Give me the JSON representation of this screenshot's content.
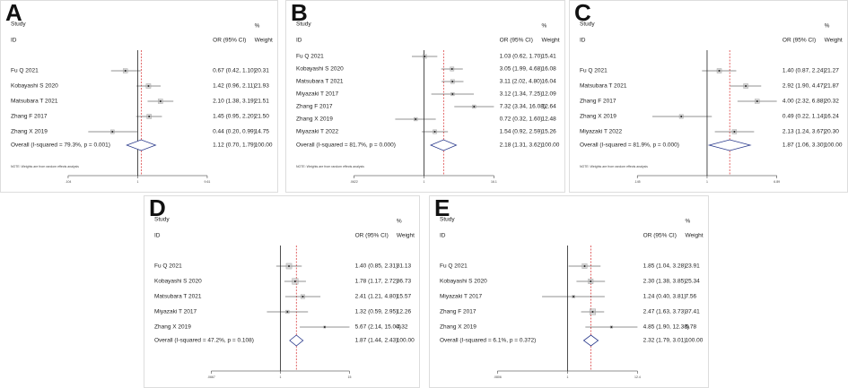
{
  "chart_data": [
    {
      "type": "forest",
      "panel": "A",
      "study_header": "Study",
      "percent_header": "%",
      "id_header": "ID",
      "estimate_header": "OR (95% CI)",
      "weight_header": "Weight",
      "categories": [
        "Fu Q 2021",
        "Kobayashi S 2020",
        "Matsubara T 2021",
        "Zhang F 2017",
        "Zhang X 2019"
      ],
      "values": [
        0.67,
        1.42,
        2.1,
        1.45,
        0.44
      ],
      "lower": [
        0.42,
        0.96,
        1.38,
        0.95,
        0.2
      ],
      "upper": [
        1.1,
        2.11,
        3.19,
        2.2,
        0.99
      ],
      "value_labels": [
        "0.67 (0.42, 1.10)",
        "1.42 (0.96, 2.11)",
        "2.10 (1.38, 3.19)",
        "1.45 (0.95, 2.20)",
        "0.44 (0.20, 0.99)"
      ],
      "weights": [
        20.31,
        21.93,
        21.51,
        21.5,
        14.75
      ],
      "weight_labels": [
        "20.31",
        "21.93",
        "21.51",
        "21.50",
        "14.75"
      ],
      "overall": {
        "label": "Overall  (I-squared = 79.3%, p = 0.001)",
        "value": 1.12,
        "lower": 0.7,
        "upper": 1.79,
        "value_label": "1.12 (0.70, 1.79)",
        "weight": 100,
        "weight_label": "100.00"
      },
      "note": "NOTE: Weights are from random effects analysis",
      "log_x": true,
      "xlim": [
        0.104,
        9.61
      ],
      "xticks": [
        {
          "value": 0.104,
          "label": ".104"
        },
        1,
        9.61
      ],
      "color": "#222222",
      "overall_line_color": "#d62728"
    },
    {
      "type": "forest",
      "panel": "B",
      "study_header": "Study",
      "percent_header": "%",
      "id_header": "ID",
      "estimate_header": "OR (95% CI)",
      "weight_header": "Weight",
      "categories": [
        "Fu Q 2021",
        "Kobayashi S 2020",
        "Matsubara T 2021",
        "Miyazaki T 2017",
        "Zhang F 2017",
        "Zhang X 2019",
        "Miyazaki T 2022"
      ],
      "values": [
        1.03,
        3.05,
        3.11,
        3.12,
        7.32,
        0.72,
        1.54
      ],
      "lower": [
        0.62,
        1.99,
        2.02,
        1.34,
        3.34,
        0.32,
        0.92
      ],
      "upper": [
        1.7,
        4.68,
        4.8,
        7.25,
        16.08,
        1.6,
        2.59
      ],
      "value_labels": [
        "1.03 (0.62, 1.70)",
        "3.05 (1.99, 4.68)",
        "3.11 (2.02, 4.80)",
        "3.12 (1.34, 7.25)",
        "7.32 (3.34, 16.08)",
        "0.72 (0.32, 1.60)",
        "1.54 (0.92, 2.59)"
      ],
      "weights": [
        15.41,
        16.08,
        16.04,
        12.09,
        12.64,
        12.48,
        15.26
      ],
      "weight_labels": [
        "15.41",
        "16.08",
        "16.04",
        "12.09",
        "12.64",
        "12.48",
        "15.26"
      ],
      "overall": {
        "label": "Overall  (I-squared = 81.7%, p = 0.000)",
        "value": 2.18,
        "lower": 1.31,
        "upper": 3.62,
        "value_label": "2.18 (1.31, 3.62)",
        "weight": 100,
        "weight_label": "100.00"
      },
      "note": "NOTE: Weights are from random effects analysis",
      "log_x": true,
      "xlim": [
        0.0622,
        16.1
      ],
      "xticks": [
        {
          "value": 0.0622,
          "label": ".0622"
        },
        1,
        16.1
      ],
      "color": "#222222",
      "overall_line_color": "#d62728"
    },
    {
      "type": "forest",
      "panel": "C",
      "study_header": "Study",
      "percent_header": "%",
      "id_header": "ID",
      "estimate_header": "OR (95% CI)",
      "weight_header": "Weight",
      "categories": [
        "Fu Q 2021",
        "Matsubara T 2021",
        "Zhang F 2017",
        "Zhang X 2019",
        "Miyazaki T 2022"
      ],
      "values": [
        1.4,
        2.92,
        4.0,
        0.49,
        2.13
      ],
      "lower": [
        0.87,
        1.9,
        2.32,
        0.22,
        1.24
      ],
      "upper": [
        2.24,
        4.47,
        6.88,
        1.14,
        3.67
      ],
      "value_labels": [
        "1.40 (0.87, 2.24)",
        "2.92 (1.90, 4.47)",
        "4.00 (2.32, 6.88)",
        "0.49 (0.22, 1.14)",
        "2.13 (1.24, 3.67)"
      ],
      "weights": [
        21.27,
        21.87,
        20.32,
        16.24,
        20.3
      ],
      "weight_labels": [
        "21.27",
        "21.87",
        "20.32",
        "16.24",
        "20.30"
      ],
      "overall": {
        "label": "Overall  (I-squared = 81.9%, p = 0.000)",
        "value": 1.87,
        "lower": 1.06,
        "upper": 3.3,
        "value_label": "1.87 (1.06, 3.30)",
        "weight": 100,
        "weight_label": "100.00"
      },
      "note": "NOTE: Weights are from random effects analysis",
      "log_x": true,
      "xlim": [
        0.145,
        6.89
      ],
      "xticks": [
        {
          "value": 0.145,
          "label": ".145"
        },
        1,
        6.89
      ],
      "color": "#222222",
      "overall_line_color": "#d62728"
    },
    {
      "type": "forest",
      "panel": "D",
      "study_header": "Study",
      "percent_header": "%",
      "id_header": "ID",
      "estimate_header": "OR (95% CI)",
      "weight_header": "Weight",
      "categories": [
        "Fu Q 2021",
        "Kobayashi S 2020",
        "Matsubara T 2021",
        "Miyazaki T 2017",
        "Zhang X 2019"
      ],
      "values": [
        1.4,
        1.78,
        2.41,
        1.32,
        5.67
      ],
      "lower": [
        0.85,
        1.17,
        1.21,
        0.59,
        2.14
      ],
      "upper": [
        2.31,
        2.72,
        4.8,
        2.95,
        15.0
      ],
      "value_labels": [
        "1.40 (0.85, 2.31)",
        "1.78 (1.17, 2.72)",
        "2.41 (1.21, 4.80)",
        "1.32 (0.59, 2.95)",
        "5.67 (2.14, 15.00)"
      ],
      "weights": [
        31.13,
        36.73,
        15.57,
        12.26,
        4.32
      ],
      "weight_labels": [
        "31.13",
        "36.73",
        "15.57",
        "12.26",
        "4.32"
      ],
      "overall": {
        "label": "Overall  (I-squared = 47.2%, p = 0.108)",
        "value": 1.87,
        "lower": 1.44,
        "upper": 2.43,
        "value_label": "1.87 (1.44, 2.43)",
        "weight": 100,
        "weight_label": "100.00"
      },
      "log_x": true,
      "xlim": [
        0.0667,
        15
      ],
      "xticks": [
        {
          "value": 0.0667,
          "label": ".0667"
        },
        1,
        15
      ],
      "color": "#222222",
      "overall_line_color": "#d62728"
    },
    {
      "type": "forest",
      "panel": "E",
      "study_header": "Study",
      "percent_header": "%",
      "id_header": "ID",
      "estimate_header": "OR (95% CI)",
      "weight_header": "Weight",
      "categories": [
        "Fu Q 2021",
        "Kobayashi S 2020",
        "Miyazaki T 2017",
        "Zhang F 2017",
        "Zhang X 2019"
      ],
      "values": [
        1.85,
        2.3,
        1.24,
        2.47,
        4.85
      ],
      "lower": [
        1.04,
        1.38,
        0.4,
        1.63,
        1.9
      ],
      "upper": [
        3.28,
        3.85,
        3.81,
        3.73,
        12.38
      ],
      "value_labels": [
        "1.85 (1.04, 3.28)",
        "2.30 (1.38, 3.85)",
        "1.24 (0.40, 3.81)",
        "2.47 (1.63, 3.73)",
        "4.85 (1.90, 12.38)"
      ],
      "weights": [
        23.91,
        25.34,
        7.56,
        37.41,
        5.78
      ],
      "weight_labels": [
        "23.91",
        "25.34",
        "7.56",
        "37.41",
        "5.78"
      ],
      "overall": {
        "label": "Overall  (I-squared = 6.1%, p = 0.372)",
        "value": 2.32,
        "lower": 1.79,
        "upper": 3.01,
        "value_label": "2.32 (1.79, 3.01)",
        "weight": 100,
        "weight_label": "100.00"
      },
      "log_x": true,
      "xlim": [
        0.0806,
        12.4
      ],
      "xticks": [
        {
          "value": 0.0806,
          "label": ".0806"
        },
        1,
        12.4
      ],
      "color": "#222222",
      "overall_line_color": "#d62728"
    }
  ]
}
